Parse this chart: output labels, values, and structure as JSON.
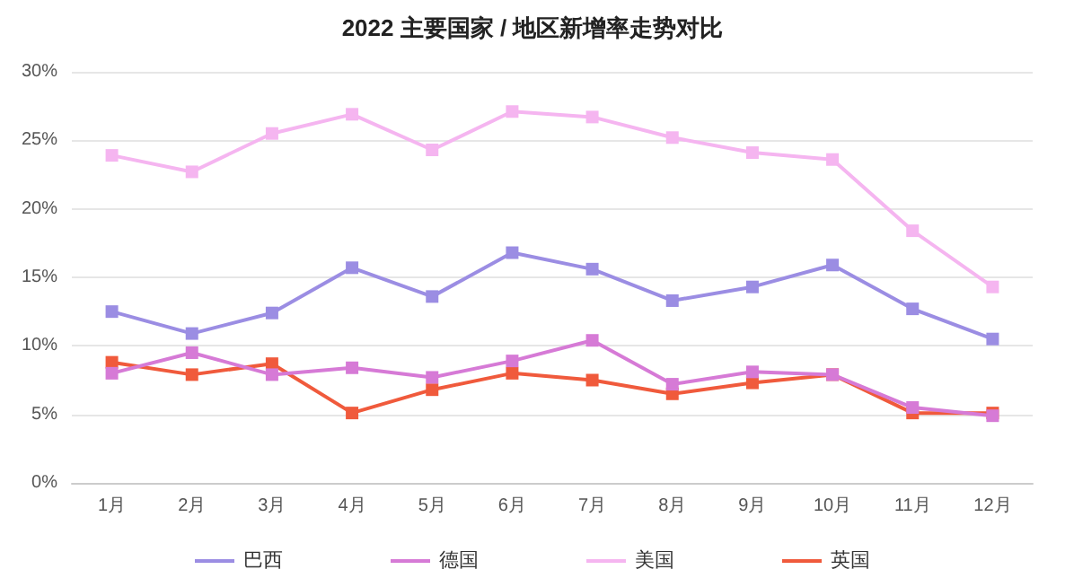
{
  "chart_data": {
    "type": "line",
    "title": "2022 主要国家 / 地区新增率走势对比",
    "categories": [
      "1月",
      "2月",
      "3月",
      "4月",
      "5月",
      "6月",
      "7月",
      "8月",
      "9月",
      "10月",
      "11月",
      "12月"
    ],
    "series": [
      {
        "name": "巴西",
        "color": "#9b8de3",
        "values": [
          12.5,
          10.9,
          12.4,
          15.7,
          13.6,
          16.8,
          15.6,
          13.3,
          14.3,
          15.9,
          12.7,
          10.5
        ]
      },
      {
        "name": "德国",
        "color": "#d67ad6",
        "values": [
          8.0,
          9.5,
          7.9,
          8.4,
          7.7,
          8.9,
          10.4,
          7.2,
          8.1,
          7.9,
          5.5,
          4.9
        ]
      },
      {
        "name": "美国",
        "color": "#f5b5f0",
        "values": [
          23.9,
          22.7,
          25.5,
          26.9,
          24.3,
          27.1,
          26.7,
          25.2,
          24.1,
          23.6,
          18.4,
          14.3
        ]
      },
      {
        "name": "英国",
        "color": "#f05a3c",
        "values": [
          8.8,
          7.9,
          8.7,
          5.1,
          6.8,
          8.0,
          7.5,
          6.5,
          7.3,
          7.9,
          5.1,
          5.1
        ]
      }
    ],
    "ylim": [
      0,
      30
    ],
    "yticks": [
      {
        "value": 0,
        "label": "0%"
      },
      {
        "value": 5,
        "label": "5%"
      },
      {
        "value": 10,
        "label": "10%"
      },
      {
        "value": 15,
        "label": "15%"
      },
      {
        "value": 20,
        "label": "20%"
      },
      {
        "value": 25,
        "label": "25%"
      },
      {
        "value": 30,
        "label": "30%"
      }
    ],
    "grid": "y",
    "legend": "bottom",
    "marker": "square",
    "line_style": "solid"
  }
}
